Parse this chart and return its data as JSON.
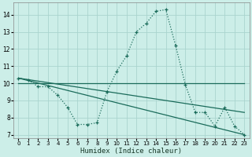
{
  "title": "",
  "xlabel": "Humidex (Indice chaleur)",
  "background_color": "#cceee8",
  "grid_color": "#aad4ce",
  "line_color": "#1a6b5a",
  "xlim": [
    -0.5,
    23.5
  ],
  "ylim": [
    6.8,
    14.7
  ],
  "yticks": [
    7,
    8,
    9,
    10,
    11,
    12,
    13,
    14
  ],
  "xticks": [
    0,
    1,
    2,
    3,
    4,
    5,
    6,
    7,
    8,
    9,
    10,
    11,
    12,
    13,
    14,
    15,
    16,
    17,
    18,
    19,
    20,
    21,
    22,
    23
  ],
  "series1_x": [
    0,
    1,
    2,
    3,
    4,
    5,
    6,
    7,
    8,
    9,
    10,
    11,
    12,
    13,
    14,
    15,
    16,
    17,
    18,
    19,
    20,
    21,
    22,
    23
  ],
  "series1_y": [
    10.3,
    10.2,
    9.8,
    9.8,
    9.3,
    8.6,
    7.6,
    7.6,
    7.7,
    9.5,
    10.7,
    11.6,
    13.0,
    13.5,
    14.2,
    14.3,
    12.2,
    9.9,
    8.3,
    8.3,
    7.5,
    8.6,
    7.5,
    7.0
  ],
  "series2_x": [
    0,
    23
  ],
  "series2_y": [
    10.3,
    7.0
  ],
  "series3_x": [
    0,
    23
  ],
  "series3_y": [
    10.3,
    8.3
  ],
  "series4_x": [
    0,
    19,
    23
  ],
  "series4_y": [
    10.0,
    10.0,
    10.0
  ],
  "xlabel_fontsize": 6.5,
  "tick_fontsize": 5.5,
  "xtick_fontsize": 5.0
}
